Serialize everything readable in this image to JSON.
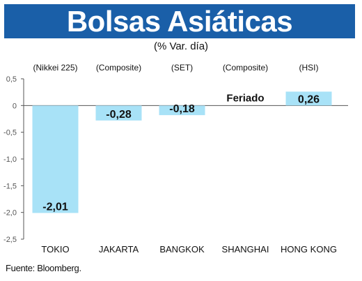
{
  "header": {
    "title": "Bolsas Asiáticas",
    "subtitle": "(% Var. día)"
  },
  "source": "Fuente: Bloomberg.",
  "colors": {
    "title_bg": "#1a5fa8",
    "bar_fill": "#a8e2f7",
    "axis": "#555555",
    "text": "#111111"
  },
  "chart_data": {
    "type": "bar",
    "categories": [
      "TOKIO",
      "JAKARTA",
      "BANGKOK",
      "SHANGHAI",
      "HONG KONG"
    ],
    "index_names": [
      "(Nikkei 225)",
      "(Composite)",
      "(SET)",
      "(Composite)",
      "(HSI)"
    ],
    "values": [
      -2.01,
      -0.28,
      -0.18,
      null,
      0.26
    ],
    "data_labels": [
      "-2,01",
      "-0,28",
      "-0,18",
      "Feriado",
      "0,26"
    ],
    "yticks": [
      "0,5",
      "0",
      "-0,5",
      "-1,0",
      "-1,5",
      "-2,0",
      "-2,5"
    ],
    "ytick_values": [
      0.5,
      0,
      -0.5,
      -1.0,
      -1.5,
      -2.0,
      -2.5
    ],
    "ylim": [
      -2.5,
      0.5
    ],
    "grid": false,
    "title": "Bolsas Asiáticas",
    "subtitle": "(% Var. día)",
    "xlabel": "",
    "ylabel": ""
  }
}
